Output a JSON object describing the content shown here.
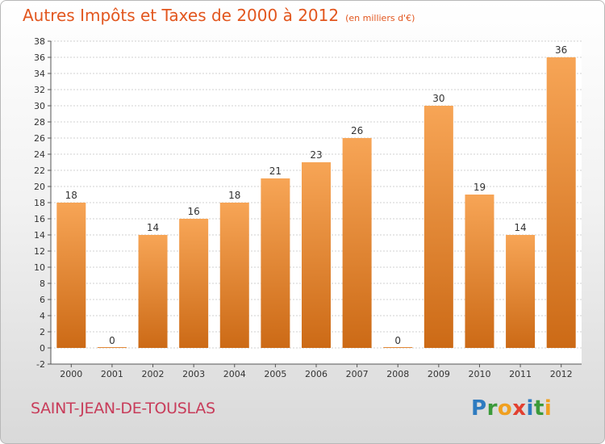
{
  "title": "Autres Impôts et Taxes de 2000 à 2012",
  "unit": "(en milliers d'€)",
  "commune": "SAINT-JEAN-DE-TOUSLAS",
  "logo": {
    "letters": [
      "P",
      "r",
      "o",
      "x",
      "i",
      "t",
      "i"
    ],
    "colors": [
      "#2e7bc0",
      "#3b9a3a",
      "#f0a020",
      "#e24030",
      "#2e7bc0",
      "#3b9a3a",
      "#f0a020"
    ]
  },
  "colors": {
    "bar_top": "#f7a556",
    "bar_bottom": "#cc6a16",
    "title": "#e2561e",
    "commune": "#c83c5a"
  },
  "chart_data": {
    "type": "bar",
    "categories": [
      "2000",
      "2001",
      "2002",
      "2003",
      "2004",
      "2005",
      "2006",
      "2007",
      "2008",
      "2009",
      "2010",
      "2011",
      "2012"
    ],
    "values": [
      18,
      0,
      14,
      16,
      18,
      21,
      23,
      26,
      0,
      30,
      19,
      14,
      36
    ],
    "ylim": [
      -2,
      38
    ],
    "yticks": [
      -2,
      0,
      2,
      4,
      6,
      8,
      10,
      12,
      14,
      16,
      18,
      20,
      22,
      24,
      26,
      28,
      30,
      32,
      34,
      36,
      38
    ],
    "grid": true
  }
}
